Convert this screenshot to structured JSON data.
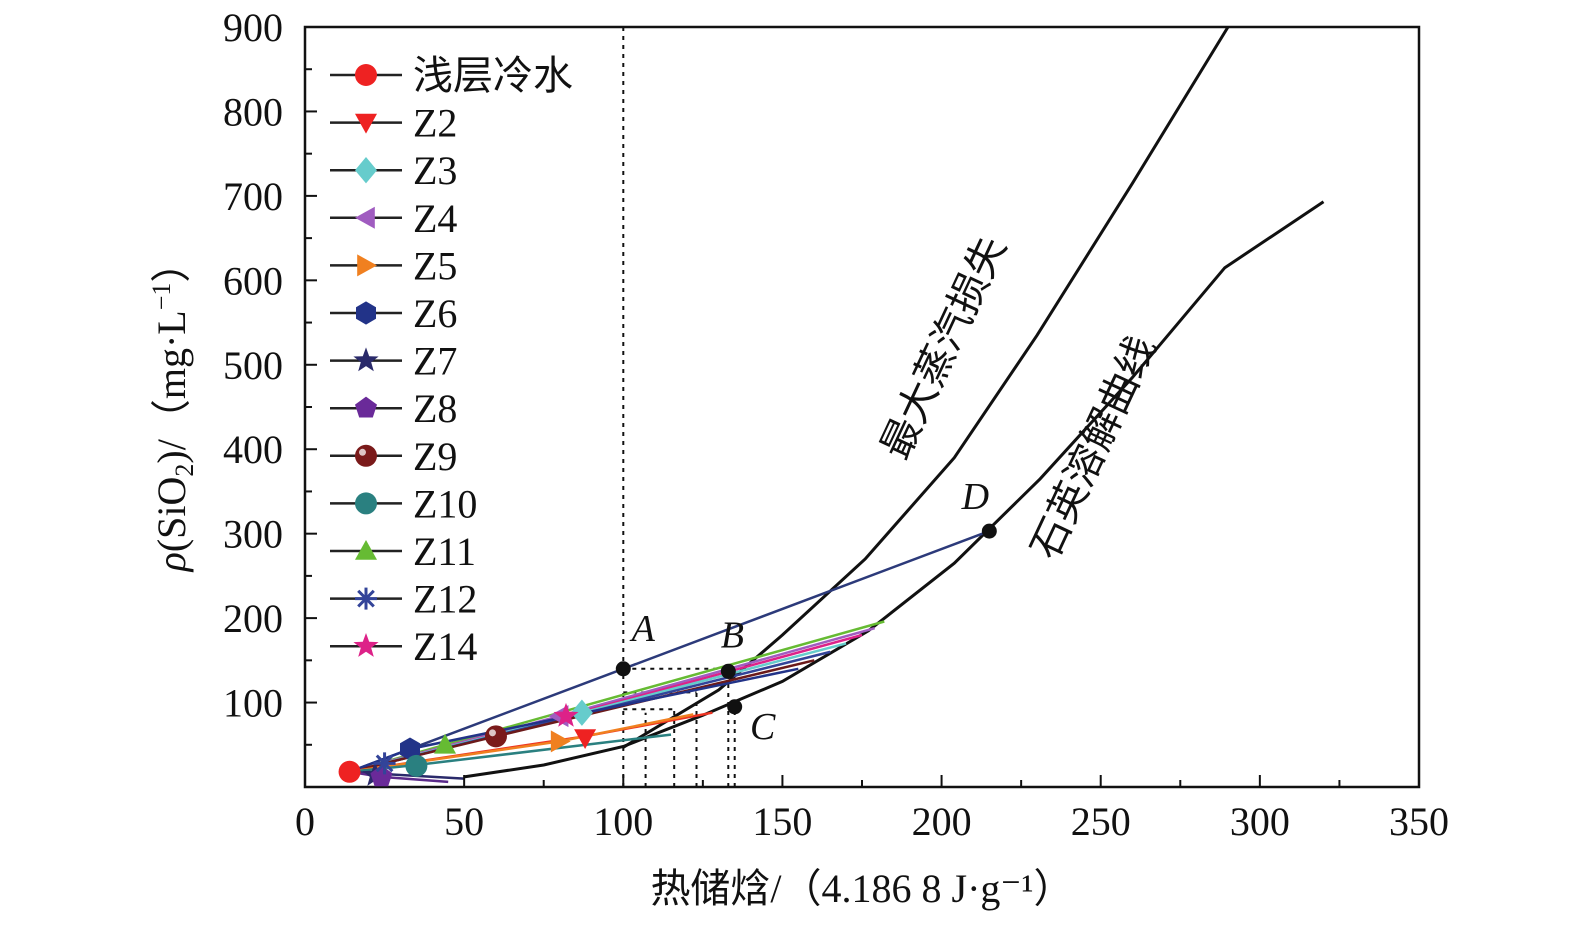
{
  "chart_data": {
    "type": "line",
    "xlabel": "热储焓/（4.186 8 J·g⁻¹）",
    "ylabel_parts": {
      "rho": "ρ",
      "pre": "(SiO",
      "sub": "2",
      "post": ")/（mg·L",
      "sup": "−1",
      "end": "）"
    },
    "xlim": [
      0,
      350
    ],
    "ylim": [
      0,
      900
    ],
    "x_ticks": [
      "0",
      "50",
      "100",
      "150",
      "200",
      "250",
      "300",
      "350"
    ],
    "y_ticks": [
      "100",
      "200",
      "300",
      "400",
      "500",
      "600",
      "700",
      "800",
      "900"
    ],
    "curve_labels": {
      "steam_loss": "最大蒸汽损失",
      "quartz": "石英溶解曲线"
    },
    "reference_lines": [
      {
        "name": "mix-line-A",
        "color": "#2c3a7a",
        "points": [
          [
            14,
            18
          ],
          [
            100,
            140
          ],
          [
            215,
            303
          ]
        ]
      },
      {
        "name": "mix-line-Z11",
        "color": "#66bb33",
        "points": [
          [
            14,
            18
          ],
          [
            44,
            50
          ],
          [
            182,
            196
          ]
        ]
      },
      {
        "name": "mix-line-Z4",
        "color": "#a05cc0",
        "points": [
          [
            14,
            18
          ],
          [
            80,
            84
          ],
          [
            179,
            188
          ]
        ]
      },
      {
        "name": "mix-line-Z14",
        "color": "#dd2288",
        "points": [
          [
            14,
            18
          ],
          [
            82,
            84
          ],
          [
            175,
            180
          ]
        ]
      },
      {
        "name": "mix-line-Z3",
        "color": "#66cccc",
        "points": [
          [
            14,
            18
          ],
          [
            87,
            88
          ],
          [
            170,
            170
          ]
        ]
      },
      {
        "name": "mix-line-Z12",
        "color": "#334499",
        "points": [
          [
            14,
            18
          ],
          [
            25,
            28
          ],
          [
            165,
            160
          ]
        ]
      },
      {
        "name": "mix-line-Z9",
        "color": "#6b1a1a",
        "points": [
          [
            14,
            18
          ],
          [
            60,
            60
          ],
          [
            160,
            150
          ]
        ]
      },
      {
        "name": "mix-line-Z6",
        "color": "#223388",
        "points": [
          [
            14,
            18
          ],
          [
            33,
            45
          ],
          [
            155,
            140
          ]
        ]
      },
      {
        "name": "mix-line-Z2",
        "color": "#ee3322",
        "points": [
          [
            14,
            18
          ],
          [
            88,
            60
          ],
          [
            128,
            88
          ]
        ]
      },
      {
        "name": "mix-line-Z5",
        "color": "#f08020",
        "points": [
          [
            14,
            18
          ],
          [
            80,
            54
          ],
          [
            122,
            86
          ]
        ]
      },
      {
        "name": "mix-line-Z10",
        "color": "#2a8080",
        "points": [
          [
            14,
            18
          ],
          [
            35,
            26
          ],
          [
            115,
            62
          ]
        ]
      },
      {
        "name": "mix-line-Z7",
        "color": "#2a2a6a",
        "points": [
          [
            14,
            18
          ],
          [
            22,
            16
          ],
          [
            50,
            10
          ]
        ]
      },
      {
        "name": "mix-line-Z8",
        "color": "#5a2a8a",
        "points": [
          [
            14,
            18
          ],
          [
            24,
            12
          ],
          [
            45,
            6
          ]
        ]
      }
    ],
    "curves": [
      {
        "name": "max-steam-loss-curve",
        "color": "#111111",
        "points": [
          [
            100,
            47
          ],
          [
            130,
            115
          ],
          [
            150,
            180
          ],
          [
            176,
            270
          ],
          [
            204,
            390
          ],
          [
            230,
            535
          ],
          [
            260,
            715
          ],
          [
            290,
            900
          ]
        ]
      },
      {
        "name": "quartz-solubility-curve",
        "color": "#111111",
        "points": [
          [
            50,
            12
          ],
          [
            75,
            26
          ],
          [
            100,
            48
          ],
          [
            125,
            85
          ],
          [
            150,
            125
          ],
          [
            177,
            185
          ],
          [
            204,
            265
          ],
          [
            231,
            365
          ],
          [
            260,
            485
          ],
          [
            289,
            615
          ],
          [
            320,
            693
          ]
        ]
      }
    ],
    "guide_lines": [
      {
        "points": [
          [
            100,
            0
          ],
          [
            100,
            900
          ]
        ]
      },
      {
        "points": [
          [
            100,
            140
          ],
          [
            133,
            140
          ]
        ]
      },
      {
        "points": [
          [
            100,
            112
          ],
          [
            123,
            112
          ]
        ]
      },
      {
        "points": [
          [
            100,
            92
          ],
          [
            116,
            92
          ]
        ]
      },
      {
        "points": [
          [
            107,
            0
          ],
          [
            107,
            88
          ]
        ]
      },
      {
        "points": [
          [
            116,
            0
          ],
          [
            116,
            92
          ]
        ]
      },
      {
        "points": [
          [
            123,
            0
          ],
          [
            123,
            112
          ]
        ]
      },
      {
        "points": [
          [
            133,
            0
          ],
          [
            133,
            140
          ]
        ]
      },
      {
        "points": [
          [
            135,
            0
          ],
          [
            135,
            95
          ]
        ]
      }
    ],
    "key_points": [
      {
        "label": "A",
        "x": 100,
        "y": 140
      },
      {
        "label": "B",
        "x": 133,
        "y": 137
      },
      {
        "label": "C",
        "x": 135,
        "y": 95
      },
      {
        "label": "D",
        "x": 215,
        "y": 303
      }
    ],
    "series": [
      {
        "name": "浅层冷水",
        "color": "#ee2222",
        "marker": "circle",
        "x": 14,
        "y": 18
      },
      {
        "name": "Z2",
        "color": "#ee2222",
        "marker": "triangle-down",
        "x": 88,
        "y": 58
      },
      {
        "name": "Z3",
        "color": "#66cccc",
        "marker": "diamond",
        "x": 87,
        "y": 88
      },
      {
        "name": "Z4",
        "color": "#a05cc0",
        "marker": "triangle-left",
        "x": 80,
        "y": 84
      },
      {
        "name": "Z5",
        "color": "#f08020",
        "marker": "triangle-right",
        "x": 80,
        "y": 54
      },
      {
        "name": "Z6",
        "color": "#223388",
        "marker": "hexagon",
        "x": 33,
        "y": 45
      },
      {
        "name": "Z7",
        "color": "#2a2a6a",
        "marker": "star",
        "x": 22,
        "y": 14
      },
      {
        "name": "Z8",
        "color": "#6a2a99",
        "marker": "pentagon",
        "x": 24,
        "y": 12
      },
      {
        "name": "Z9",
        "color": "#7a1a1a",
        "marker": "sphere",
        "x": 60,
        "y": 60
      },
      {
        "name": "Z10",
        "color": "#2a8080",
        "marker": "circle",
        "x": 35,
        "y": 25
      },
      {
        "name": "Z11",
        "color": "#66bb33",
        "marker": "triangle-up",
        "x": 44,
        "y": 50
      },
      {
        "name": "Z12",
        "color": "#334499",
        "marker": "asterisk",
        "x": 25,
        "y": 28
      },
      {
        "name": "Z14",
        "color": "#dd2288",
        "marker": "star",
        "x": 82,
        "y": 84
      }
    ]
  }
}
